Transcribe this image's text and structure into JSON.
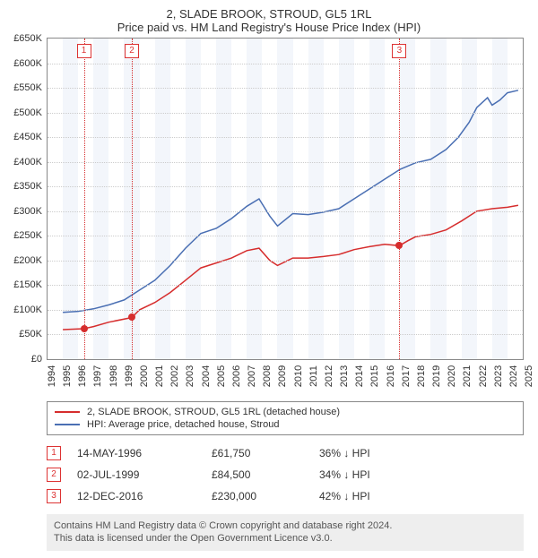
{
  "title": {
    "line1": "2, SLADE BROOK, STROUD, GL5 1RL",
    "line2": "Price paid vs. HM Land Registry's House Price Index (HPI)"
  },
  "chart": {
    "type": "line",
    "x": {
      "min": 1994,
      "max": 2025,
      "tick_step": 1
    },
    "y": {
      "min": 0,
      "max": 650000,
      "tick_step": 50000,
      "prefix": "£",
      "suffix": "K",
      "divide_by": 1000
    },
    "grid_color": "#cccccc",
    "border_color": "#888888",
    "background_color": "#ffffff",
    "shaded_bands_color": "rgba(100,140,200,0.08)",
    "shaded_bands": [
      [
        1995,
        1996
      ],
      [
        1997,
        1998
      ],
      [
        1999,
        2000
      ],
      [
        2001,
        2002
      ],
      [
        2003,
        2004
      ],
      [
        2005,
        2006
      ],
      [
        2007,
        2008
      ],
      [
        2009,
        2010
      ],
      [
        2011,
        2012
      ],
      [
        2013,
        2014
      ],
      [
        2015,
        2016
      ],
      [
        2017,
        2018
      ],
      [
        2019,
        2020
      ],
      [
        2021,
        2022
      ],
      [
        2023,
        2024
      ]
    ],
    "series": [
      {
        "name": "property",
        "label": "2, SLADE BROOK, STROUD, GL5 1RL (detached house)",
        "color": "#d62d2d",
        "line_width": 1.5,
        "points": [
          [
            1995.0,
            60000
          ],
          [
            1996.37,
            61750
          ],
          [
            1997.0,
            66000
          ],
          [
            1998.0,
            75000
          ],
          [
            1999.5,
            84500
          ],
          [
            2000.0,
            100000
          ],
          [
            2001.0,
            115000
          ],
          [
            2002.0,
            135000
          ],
          [
            2003.0,
            160000
          ],
          [
            2004.0,
            185000
          ],
          [
            2005.0,
            195000
          ],
          [
            2006.0,
            205000
          ],
          [
            2007.0,
            220000
          ],
          [
            2007.8,
            225000
          ],
          [
            2008.5,
            200000
          ],
          [
            2009.0,
            190000
          ],
          [
            2010.0,
            205000
          ],
          [
            2011.0,
            205000
          ],
          [
            2012.0,
            208000
          ],
          [
            2013.0,
            212000
          ],
          [
            2014.0,
            222000
          ],
          [
            2015.0,
            228000
          ],
          [
            2016.0,
            233000
          ],
          [
            2016.95,
            230000
          ],
          [
            2017.5,
            240000
          ],
          [
            2018.0,
            248000
          ],
          [
            2019.0,
            253000
          ],
          [
            2020.0,
            262000
          ],
          [
            2021.0,
            280000
          ],
          [
            2022.0,
            300000
          ],
          [
            2023.0,
            305000
          ],
          [
            2024.0,
            308000
          ],
          [
            2024.7,
            312000
          ]
        ],
        "markers": [
          {
            "x": 1996.37,
            "y": 61750
          },
          {
            "x": 1999.5,
            "y": 84500
          },
          {
            "x": 2016.95,
            "y": 230000
          }
        ]
      },
      {
        "name": "hpi",
        "label": "HPI: Average price, detached house, Stroud",
        "color": "#4a6fb3",
        "line_width": 1.5,
        "points": [
          [
            1995.0,
            95000
          ],
          [
            1996.0,
            97000
          ],
          [
            1997.0,
            102000
          ],
          [
            1998.0,
            110000
          ],
          [
            1999.0,
            120000
          ],
          [
            2000.0,
            140000
          ],
          [
            2001.0,
            160000
          ],
          [
            2002.0,
            190000
          ],
          [
            2003.0,
            225000
          ],
          [
            2004.0,
            255000
          ],
          [
            2005.0,
            265000
          ],
          [
            2006.0,
            285000
          ],
          [
            2007.0,
            310000
          ],
          [
            2007.8,
            325000
          ],
          [
            2008.5,
            290000
          ],
          [
            2009.0,
            270000
          ],
          [
            2010.0,
            295000
          ],
          [
            2011.0,
            293000
          ],
          [
            2012.0,
            298000
          ],
          [
            2013.0,
            305000
          ],
          [
            2014.0,
            325000
          ],
          [
            2015.0,
            345000
          ],
          [
            2016.0,
            365000
          ],
          [
            2017.0,
            385000
          ],
          [
            2018.0,
            398000
          ],
          [
            2019.0,
            405000
          ],
          [
            2020.0,
            425000
          ],
          [
            2020.8,
            450000
          ],
          [
            2021.5,
            480000
          ],
          [
            2022.0,
            510000
          ],
          [
            2022.7,
            530000
          ],
          [
            2023.0,
            515000
          ],
          [
            2023.5,
            525000
          ],
          [
            2024.0,
            540000
          ],
          [
            2024.7,
            545000
          ]
        ]
      }
    ],
    "events": [
      {
        "n": "1",
        "x": 1996.37,
        "date": "14-MAY-1996",
        "price": "£61,750",
        "delta": "36% ↓ HPI"
      },
      {
        "n": "2",
        "x": 1999.5,
        "date": "02-JUL-1999",
        "price": "£84,500",
        "delta": "34% ↓ HPI"
      },
      {
        "n": "3",
        "x": 2016.95,
        "date": "12-DEC-2016",
        "price": "£230,000",
        "delta": "42% ↓ HPI"
      }
    ],
    "event_line_color": "#d62d2d"
  },
  "legend": {
    "items": [
      {
        "color": "#d62d2d",
        "label": "2, SLADE BROOK, STROUD, GL5 1RL (detached house)"
      },
      {
        "color": "#4a6fb3",
        "label": "HPI: Average price, detached house, Stroud"
      }
    ]
  },
  "footnote": {
    "line1": "Contains HM Land Registry data © Crown copyright and database right 2024.",
    "line2": "This data is licensed under the Open Government Licence v3.0."
  }
}
